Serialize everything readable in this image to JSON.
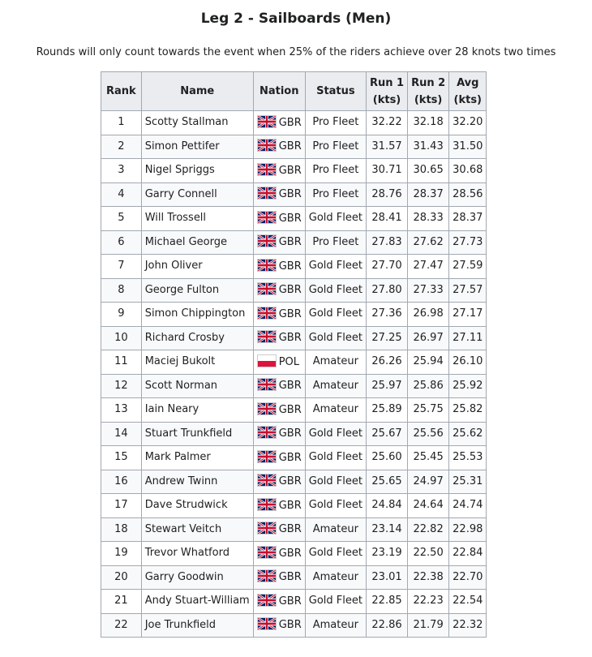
{
  "page": {
    "title": "Leg 2 - Sailboards (Men)",
    "note": "Rounds will only count towards the event when 25% of the riders achieve over 28 knots two times"
  },
  "table": {
    "headers": {
      "rank": "Rank",
      "name": "Name",
      "nation": "Nation",
      "status": "Status",
      "run1": [
        "Run 1",
        "(kts)"
      ],
      "run2": [
        "Run 2",
        "(kts)"
      ],
      "avg": [
        "Avg",
        "(kts)"
      ]
    },
    "flag_icons": {
      "GBR": "flag-gbr-icon",
      "POL": "flag-pol-icon"
    },
    "rows": [
      {
        "rank": "1",
        "name": "Scotty Stallman",
        "nation": "GBR",
        "status": "Pro Fleet",
        "run1": "32.22",
        "run2": "32.18",
        "avg": "32.20"
      },
      {
        "rank": "2",
        "name": "Simon Pettifer",
        "nation": "GBR",
        "status": "Pro Fleet",
        "run1": "31.57",
        "run2": "31.43",
        "avg": "31.50"
      },
      {
        "rank": "3",
        "name": "Nigel Spriggs",
        "nation": "GBR",
        "status": "Pro Fleet",
        "run1": "30.71",
        "run2": "30.65",
        "avg": "30.68"
      },
      {
        "rank": "4",
        "name": "Garry Connell",
        "nation": "GBR",
        "status": "Pro Fleet",
        "run1": "28.76",
        "run2": "28.37",
        "avg": "28.56"
      },
      {
        "rank": "5",
        "name": "Will Trossell",
        "nation": "GBR",
        "status": "Gold Fleet",
        "run1": "28.41",
        "run2": "28.33",
        "avg": "28.37"
      },
      {
        "rank": "6",
        "name": "Michael George",
        "nation": "GBR",
        "status": "Pro Fleet",
        "run1": "27.83",
        "run2": "27.62",
        "avg": "27.73"
      },
      {
        "rank": "7",
        "name": "John Oliver",
        "nation": "GBR",
        "status": "Gold Fleet",
        "run1": "27.70",
        "run2": "27.47",
        "avg": "27.59"
      },
      {
        "rank": "8",
        "name": "George Fulton",
        "nation": "GBR",
        "status": "Gold Fleet",
        "run1": "27.80",
        "run2": "27.33",
        "avg": "27.57"
      },
      {
        "rank": "9",
        "name": "Simon Chippington",
        "nation": "GBR",
        "status": "Gold Fleet",
        "run1": "27.36",
        "run2": "26.98",
        "avg": "27.17"
      },
      {
        "rank": "10",
        "name": "Richard Crosby",
        "nation": "GBR",
        "status": "Gold Fleet",
        "run1": "27.25",
        "run2": "26.97",
        "avg": "27.11"
      },
      {
        "rank": "11",
        "name": "Maciej Bukolt",
        "nation": "POL",
        "status": "Amateur",
        "run1": "26.26",
        "run2": "25.94",
        "avg": "26.10"
      },
      {
        "rank": "12",
        "name": "Scott Norman",
        "nation": "GBR",
        "status": "Amateur",
        "run1": "25.97",
        "run2": "25.86",
        "avg": "25.92"
      },
      {
        "rank": "13",
        "name": "Iain Neary",
        "nation": "GBR",
        "status": "Amateur",
        "run1": "25.89",
        "run2": "25.75",
        "avg": "25.82"
      },
      {
        "rank": "14",
        "name": "Stuart Trunkfield",
        "nation": "GBR",
        "status": "Gold Fleet",
        "run1": "25.67",
        "run2": "25.56",
        "avg": "25.62"
      },
      {
        "rank": "15",
        "name": "Mark Palmer",
        "nation": "GBR",
        "status": "Gold Fleet",
        "run1": "25.60",
        "run2": "25.45",
        "avg": "25.53"
      },
      {
        "rank": "16",
        "name": "Andrew Twinn",
        "nation": "GBR",
        "status": "Gold Fleet",
        "run1": "25.65",
        "run2": "24.97",
        "avg": "25.31"
      },
      {
        "rank": "17",
        "name": "Dave Strudwick",
        "nation": "GBR",
        "status": "Gold Fleet",
        "run1": "24.84",
        "run2": "24.64",
        "avg": "24.74"
      },
      {
        "rank": "18",
        "name": "Stewart Veitch",
        "nation": "GBR",
        "status": "Amateur",
        "run1": "23.14",
        "run2": "22.82",
        "avg": "22.98"
      },
      {
        "rank": "19",
        "name": "Trevor Whatford",
        "nation": "GBR",
        "status": "Gold Fleet",
        "run1": "23.19",
        "run2": "22.50",
        "avg": "22.84"
      },
      {
        "rank": "20",
        "name": "Garry Goodwin",
        "nation": "GBR",
        "status": "Amateur",
        "run1": "23.01",
        "run2": "22.38",
        "avg": "22.70"
      },
      {
        "rank": "21",
        "name": "Andy Stuart-William",
        "nation": "GBR",
        "status": "Gold Fleet",
        "run1": "22.85",
        "run2": "22.23",
        "avg": "22.54"
      },
      {
        "rank": "22",
        "name": "Joe Trunkfield",
        "nation": "GBR",
        "status": "Amateur",
        "run1": "22.86",
        "run2": "21.79",
        "avg": "22.32"
      }
    ]
  }
}
